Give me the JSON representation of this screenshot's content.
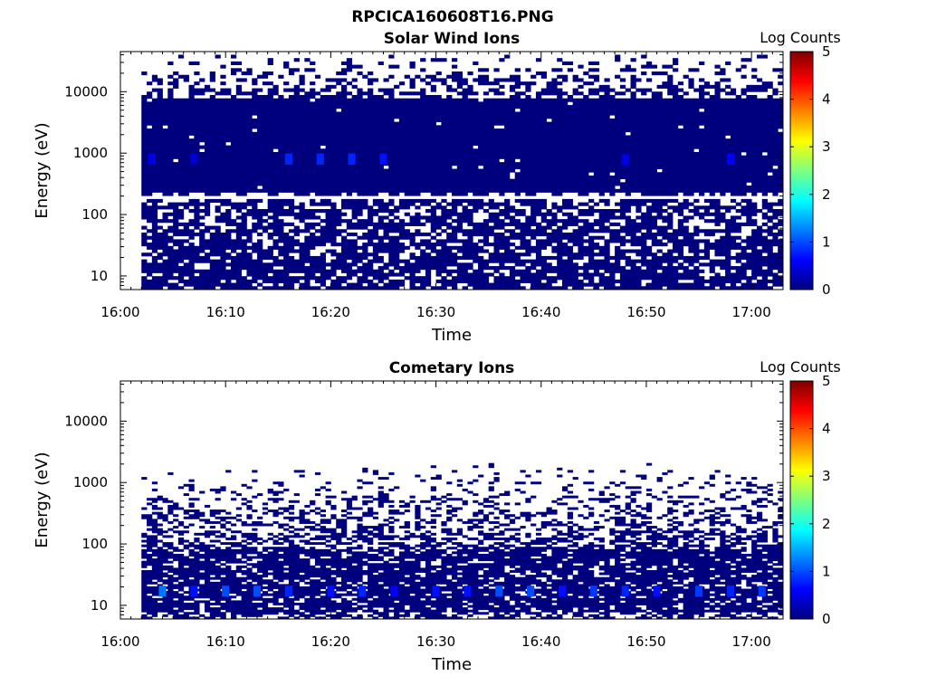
{
  "figure_title": "RPCICA160608T16.PNG",
  "colormap": [
    "#00007f",
    "#0000ff",
    "#007fff",
    "#00ffff",
    "#7fff7f",
    "#ffff00",
    "#ff7f00",
    "#ff0000",
    "#7f0000"
  ],
  "chart_data": [
    {
      "type": "heatmap",
      "title": "Solar Wind Ions",
      "xlabel": "Time",
      "ylabel": "Energy (eV)",
      "colorbar_label": "Log Counts",
      "colorbar_ticks": [
        "0",
        "1",
        "2",
        "3",
        "4",
        "5"
      ],
      "clim": [
        0,
        5
      ],
      "x_tick_labels": [
        "16:00",
        "16:10",
        "16:20",
        "16:30",
        "16:40",
        "16:50",
        "17:00"
      ],
      "x_range": [
        "16:00",
        "17:03"
      ],
      "y_tick_labels": [
        "10",
        "100",
        "1000",
        "10000"
      ],
      "y_range_eV": [
        6,
        45000
      ],
      "y_scale": "log",
      "data_time_range": [
        "16:02",
        "17:03"
      ],
      "background_log_counts": 0,
      "dense_energy_band_eV": [
        220,
        8000
      ],
      "gap_energy_eV": 200,
      "hotspots": [
        {
          "time": "16:03",
          "energy_eV": 800,
          "log_counts": 0.5
        },
        {
          "time": "16:07",
          "energy_eV": 800,
          "log_counts": 0.4
        },
        {
          "time": "16:16",
          "energy_eV": 800,
          "log_counts": 0.8
        },
        {
          "time": "16:19",
          "energy_eV": 800,
          "log_counts": 0.8
        },
        {
          "time": "16:22",
          "energy_eV": 800,
          "log_counts": 0.8
        },
        {
          "time": "16:25",
          "energy_eV": 800,
          "log_counts": 0.7
        },
        {
          "time": "16:48",
          "energy_eV": 780,
          "log_counts": 0.5
        },
        {
          "time": "16:58",
          "energy_eV": 800,
          "log_counts": 0.6
        }
      ]
    },
    {
      "type": "heatmap",
      "title": "Cometary Ions",
      "xlabel": "Time",
      "ylabel": "Energy (eV)",
      "colorbar_label": "Log Counts",
      "colorbar_ticks": [
        "0",
        "1",
        "2",
        "3",
        "4",
        "5"
      ],
      "clim": [
        0,
        5
      ],
      "x_tick_labels": [
        "16:00",
        "16:10",
        "16:20",
        "16:30",
        "16:40",
        "16:50",
        "17:00"
      ],
      "x_range": [
        "16:00",
        "17:03"
      ],
      "y_tick_labels": [
        "10",
        "100",
        "1000",
        "10000"
      ],
      "y_range_eV": [
        6,
        45000
      ],
      "y_scale": "log",
      "data_time_range": [
        "16:02",
        "17:03"
      ],
      "background_log_counts": 0,
      "dense_energy_band_eV": [
        8,
        80
      ],
      "upper_extent_eV": 2500,
      "hotspots": [
        {
          "time": "16:04",
          "energy_eV": 17,
          "log_counts": 1.2
        },
        {
          "time": "16:07",
          "energy_eV": 17,
          "log_counts": 0.7
        },
        {
          "time": "16:10",
          "energy_eV": 17,
          "log_counts": 1.0
        },
        {
          "time": "16:13",
          "energy_eV": 17,
          "log_counts": 1.0
        },
        {
          "time": "16:16",
          "energy_eV": 17,
          "log_counts": 0.8
        },
        {
          "time": "16:20",
          "energy_eV": 17,
          "log_counts": 0.7
        },
        {
          "time": "16:23",
          "energy_eV": 17,
          "log_counts": 0.8
        },
        {
          "time": "16:26",
          "energy_eV": 17,
          "log_counts": 0.6
        },
        {
          "time": "16:30",
          "energy_eV": 17,
          "log_counts": 0.7
        },
        {
          "time": "16:33",
          "energy_eV": 17,
          "log_counts": 0.7
        },
        {
          "time": "16:36",
          "energy_eV": 17,
          "log_counts": 1.0
        },
        {
          "time": "16:39",
          "energy_eV": 17,
          "log_counts": 1.0
        },
        {
          "time": "16:42",
          "energy_eV": 17,
          "log_counts": 0.7
        },
        {
          "time": "16:45",
          "energy_eV": 17,
          "log_counts": 0.9
        },
        {
          "time": "16:48",
          "energy_eV": 17,
          "log_counts": 0.8
        },
        {
          "time": "16:51",
          "energy_eV": 17,
          "log_counts": 0.7
        },
        {
          "time": "16:55",
          "energy_eV": 17,
          "log_counts": 0.9
        },
        {
          "time": "16:58",
          "energy_eV": 17,
          "log_counts": 0.8
        },
        {
          "time": "17:01",
          "energy_eV": 17,
          "log_counts": 0.9
        }
      ]
    }
  ]
}
